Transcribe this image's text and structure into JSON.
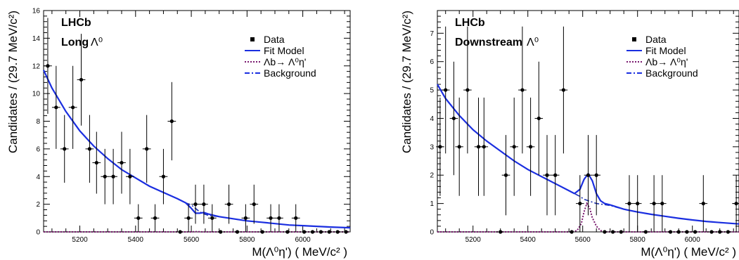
{
  "chart_data": [
    {
      "type": "scatter",
      "experiment_label": "LHCb",
      "sample_label": "Long",
      "ylabel": "Candidates / (29.7 MeV/c²)",
      "xlabel": "M(Λ⁰η') ( MeV/c² )",
      "xlim": [
        5070,
        6170
      ],
      "ylim": [
        0,
        16
      ],
      "x_ticks": [
        5200,
        5400,
        5600,
        5800,
        6000
      ],
      "y_ticks": [
        0,
        2,
        4,
        6,
        8,
        10,
        12,
        14,
        16
      ],
      "legend_position": "top-right",
      "legend": [
        "Data",
        "Fit Model",
        "Λb→ Λ⁰η'",
        "Background"
      ],
      "data": [
        {
          "x": 5085,
          "y": 12
        },
        {
          "x": 5115,
          "y": 9
        },
        {
          "x": 5145,
          "y": 6
        },
        {
          "x": 5175,
          "y": 9
        },
        {
          "x": 5205,
          "y": 11
        },
        {
          "x": 5235,
          "y": 6
        },
        {
          "x": 5260,
          "y": 5
        },
        {
          "x": 5290,
          "y": 4
        },
        {
          "x": 5320,
          "y": 4
        },
        {
          "x": 5350,
          "y": 5
        },
        {
          "x": 5380,
          "y": 4
        },
        {
          "x": 5410,
          "y": 1
        },
        {
          "x": 5440,
          "y": 6
        },
        {
          "x": 5470,
          "y": 1
        },
        {
          "x": 5500,
          "y": 4
        },
        {
          "x": 5530,
          "y": 8
        },
        {
          "x": 5560,
          "y": 0
        },
        {
          "x": 5590,
          "y": 1
        },
        {
          "x": 5615,
          "y": 2
        },
        {
          "x": 5645,
          "y": 2
        },
        {
          "x": 5675,
          "y": 1
        },
        {
          "x": 5705,
          "y": 0
        },
        {
          "x": 5735,
          "y": 2
        },
        {
          "x": 5765,
          "y": 0
        },
        {
          "x": 5795,
          "y": 1
        },
        {
          "x": 5825,
          "y": 2
        },
        {
          "x": 5855,
          "y": 0
        },
        {
          "x": 5885,
          "y": 1
        },
        {
          "x": 5915,
          "y": 1
        },
        {
          "x": 5945,
          "y": 0
        },
        {
          "x": 5975,
          "y": 1
        },
        {
          "x": 6005,
          "y": 0
        },
        {
          "x": 6035,
          "y": 0
        },
        {
          "x": 6065,
          "y": 0
        },
        {
          "x": 6095,
          "y": 0
        },
        {
          "x": 6125,
          "y": 0
        },
        {
          "x": 6155,
          "y": 0
        }
      ],
      "fit_model": {
        "x": [
          5070,
          5100,
          5150,
          5200,
          5250,
          5300,
          5350,
          5400,
          5450,
          5500,
          5550,
          5580,
          5600,
          5615,
          5630,
          5645,
          5660,
          5680,
          5700,
          5750,
          5800,
          5850,
          5900,
          5950,
          6000,
          6050,
          6100,
          6170
        ],
        "y": [
          11.7,
          10.4,
          8.7,
          7.3,
          6.2,
          5.3,
          4.5,
          3.9,
          3.3,
          2.85,
          2.4,
          2.1,
          1.7,
          1.35,
          1.35,
          1.4,
          1.3,
          1.2,
          1.1,
          0.95,
          0.8,
          0.7,
          0.6,
          0.5,
          0.45,
          0.4,
          0.35,
          0.3
        ]
      },
      "background": {
        "x": [
          5070,
          5100,
          5150,
          5200,
          5250,
          5300,
          5350,
          5400,
          5450,
          5500,
          5550,
          5580,
          5600,
          5615,
          5630,
          5645,
          5660,
          5680,
          5700,
          5750,
          5800,
          5850,
          5900,
          5950,
          6000,
          6050,
          6100,
          6170
        ],
        "y": [
          11.7,
          10.4,
          8.7,
          7.3,
          6.2,
          5.3,
          4.5,
          3.9,
          3.3,
          2.85,
          2.4,
          2.1,
          1.95,
          1.7,
          1.45,
          1.3,
          1.2,
          1.15,
          1.1,
          0.95,
          0.8,
          0.7,
          0.6,
          0.5,
          0.45,
          0.4,
          0.35,
          0.3
        ]
      },
      "signal": {
        "x": [
          5070,
          5550,
          5600,
          5620,
          5640,
          5700,
          6170
        ],
        "y": [
          0,
          0,
          0,
          0.02,
          0,
          0,
          0
        ]
      }
    },
    {
      "type": "scatter",
      "experiment_label": "LHCb",
      "sample_label": "Downstream",
      "ylabel": "Candidates / (29.7 MeV/c²)",
      "xlabel": "M(Λ⁰η') ( MeV/c² )",
      "xlim": [
        5070,
        6170
      ],
      "ylim": [
        0,
        7.8
      ],
      "x_ticks": [
        5200,
        5400,
        5600,
        5800,
        6000
      ],
      "y_ticks": [
        0,
        1,
        2,
        3,
        4,
        5,
        6,
        7
      ],
      "legend_position": "top-right",
      "legend": [
        "Data",
        "Fit Model",
        "Λb→ Λ⁰η'",
        "Background"
      ],
      "data": [
        {
          "x": 5080,
          "y": 3
        },
        {
          "x": 5100,
          "y": 5
        },
        {
          "x": 5130,
          "y": 4
        },
        {
          "x": 5150,
          "y": 3
        },
        {
          "x": 5180,
          "y": 5
        },
        {
          "x": 5220,
          "y": 3
        },
        {
          "x": 5240,
          "y": 3
        },
        {
          "x": 5300,
          "y": 0
        },
        {
          "x": 5320,
          "y": 2
        },
        {
          "x": 5350,
          "y": 3
        },
        {
          "x": 5380,
          "y": 5
        },
        {
          "x": 5410,
          "y": 3
        },
        {
          "x": 5440,
          "y": 4
        },
        {
          "x": 5470,
          "y": 2
        },
        {
          "x": 5500,
          "y": 2
        },
        {
          "x": 5530,
          "y": 5
        },
        {
          "x": 5560,
          "y": 0
        },
        {
          "x": 5590,
          "y": 1
        },
        {
          "x": 5620,
          "y": 2
        },
        {
          "x": 5650,
          "y": 2
        },
        {
          "x": 5680,
          "y": 0
        },
        {
          "x": 5710,
          "y": 0
        },
        {
          "x": 5740,
          "y": 0
        },
        {
          "x": 5770,
          "y": 1
        },
        {
          "x": 5800,
          "y": 1
        },
        {
          "x": 5830,
          "y": 0
        },
        {
          "x": 5860,
          "y": 1
        },
        {
          "x": 5890,
          "y": 1
        },
        {
          "x": 5920,
          "y": 0
        },
        {
          "x": 5950,
          "y": 0
        },
        {
          "x": 5980,
          "y": 0
        },
        {
          "x": 6010,
          "y": 0
        },
        {
          "x": 6040,
          "y": 1
        },
        {
          "x": 6070,
          "y": 0
        },
        {
          "x": 6100,
          "y": 0
        },
        {
          "x": 6130,
          "y": 0
        },
        {
          "x": 6160,
          "y": 1
        }
      ],
      "fit_model": {
        "x": [
          5070,
          5100,
          5150,
          5200,
          5250,
          5300,
          5350,
          5400,
          5450,
          5500,
          5550,
          5570,
          5590,
          5605,
          5620,
          5635,
          5650,
          5665,
          5680,
          5700,
          5750,
          5800,
          5850,
          5900,
          5950,
          6000,
          6050,
          6100,
          6170
        ],
        "y": [
          5.2,
          4.7,
          4.1,
          3.6,
          3.2,
          2.85,
          2.5,
          2.2,
          1.95,
          1.7,
          1.45,
          1.35,
          1.5,
          1.85,
          2.05,
          1.8,
          1.35,
          1.1,
          1.0,
          0.95,
          0.8,
          0.7,
          0.62,
          0.55,
          0.48,
          0.42,
          0.37,
          0.33,
          0.28
        ]
      },
      "background": {
        "x": [
          5070,
          5100,
          5150,
          5200,
          5250,
          5300,
          5350,
          5400,
          5450,
          5500,
          5550,
          5570,
          5590,
          5605,
          5620,
          5635,
          5650,
          5665,
          5680,
          5700,
          5750,
          5800,
          5850,
          5900,
          5950,
          6000,
          6050,
          6100,
          6170
        ],
        "y": [
          5.2,
          4.7,
          4.1,
          3.6,
          3.2,
          2.85,
          2.5,
          2.2,
          1.95,
          1.7,
          1.45,
          1.35,
          1.25,
          1.15,
          1.1,
          1.05,
          1.0,
          0.98,
          0.96,
          0.93,
          0.8,
          0.7,
          0.62,
          0.55,
          0.48,
          0.42,
          0.37,
          0.33,
          0.28
        ]
      },
      "signal": {
        "x": [
          5070,
          5560,
          5580,
          5595,
          5605,
          5615,
          5625,
          5635,
          5650,
          5665,
          5680,
          6170
        ],
        "y": [
          0,
          0,
          0.05,
          0.3,
          0.7,
          1.0,
          0.85,
          0.5,
          0.2,
          0.05,
          0,
          0
        ]
      }
    }
  ]
}
